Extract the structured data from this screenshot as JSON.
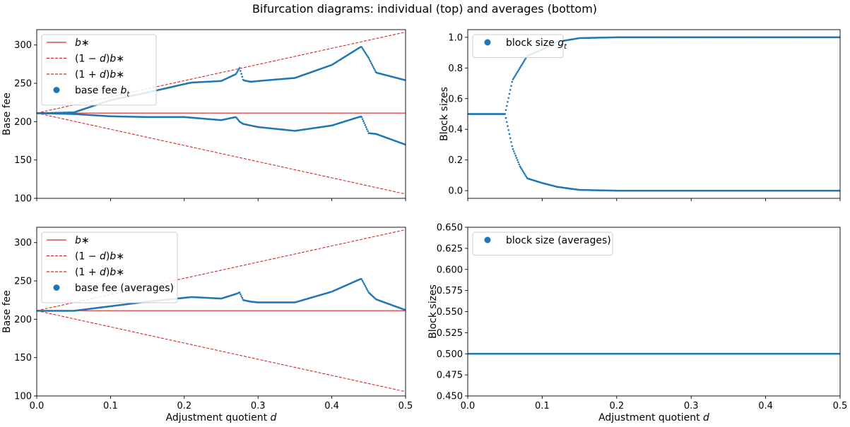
{
  "figure_title": "Bifurcation diagrams: individual (top) and averages (bottom)",
  "colors": {
    "scatter": "#1f77b4",
    "ref_line": "#d62728",
    "axis": "#000000",
    "legend_border": "#cccccc"
  },
  "chart_data": [
    {
      "id": "top-left",
      "type": "scatter",
      "xlabel": "",
      "ylabel": "Base fee",
      "xlim": [
        0,
        0.5
      ],
      "ylim": [
        100,
        320
      ],
      "xticks": [
        0.0,
        0.1,
        0.2,
        0.3,
        0.4,
        0.5
      ],
      "show_xtick_labels": false,
      "yticks": [
        100,
        150,
        200,
        250,
        300
      ],
      "legend": [
        "b*",
        "(1-d)b*",
        "(1+d)b*",
        "base fee b_t"
      ],
      "legend_placement": "top-left",
      "ref_lines": {
        "b_star": 211.2
      },
      "series": [
        {
          "name": "base fee b_t (upper branch)",
          "x": [
            0,
            0.05,
            0.1,
            0.15,
            0.2,
            0.21,
            0.25,
            0.27,
            0.275,
            0.28,
            0.29,
            0.3,
            0.35,
            0.4,
            0.44,
            0.45,
            0.46,
            0.5
          ],
          "y": [
            211,
            212,
            228,
            238,
            249,
            251,
            253,
            262,
            270,
            254,
            252,
            253,
            257,
            274,
            298,
            283,
            264,
            254
          ]
        },
        {
          "name": "base fee b_t (lower branch)",
          "x": [
            0,
            0.05,
            0.1,
            0.15,
            0.2,
            0.25,
            0.27,
            0.275,
            0.28,
            0.29,
            0.3,
            0.35,
            0.4,
            0.44,
            0.45,
            0.46,
            0.5
          ],
          "y": [
            211,
            210,
            207,
            206,
            206,
            202,
            206,
            200,
            197,
            195,
            193,
            188,
            195,
            207,
            185,
            184,
            170
          ]
        }
      ]
    },
    {
      "id": "top-right",
      "type": "scatter",
      "xlabel": "",
      "ylabel": "Block sizes",
      "xlim": [
        0,
        0.5
      ],
      "ylim": [
        -0.05,
        1.05
      ],
      "xticks": [
        0.0,
        0.1,
        0.2,
        0.3,
        0.4,
        0.5
      ],
      "show_xtick_labels": false,
      "yticks": [
        0.0,
        0.2,
        0.4,
        0.6,
        0.8,
        1.0
      ],
      "legend": [
        "block size g_t"
      ],
      "legend_placement": "top-left",
      "series": [
        {
          "name": "block size g_t (upper)",
          "x": [
            0,
            0.05,
            0.06,
            0.08,
            0.1,
            0.12,
            0.15,
            0.2,
            0.5
          ],
          "y": [
            0.5,
            0.5,
            0.72,
            0.88,
            0.92,
            0.97,
            0.995,
            1.0,
            1.0
          ]
        },
        {
          "name": "block size g_t (lower)",
          "x": [
            0,
            0.05,
            0.06,
            0.07,
            0.08,
            0.1,
            0.12,
            0.15,
            0.2,
            0.5
          ],
          "y": [
            0.5,
            0.5,
            0.28,
            0.16,
            0.08,
            0.05,
            0.025,
            0.005,
            0.0,
            0.0
          ]
        }
      ]
    },
    {
      "id": "bottom-left",
      "type": "scatter",
      "xlabel": "Adjustment quotient d",
      "ylabel": "Base fee",
      "xlim": [
        0,
        0.5
      ],
      "ylim": [
        100,
        320
      ],
      "xticks": [
        0.0,
        0.1,
        0.2,
        0.3,
        0.4,
        0.5
      ],
      "show_xtick_labels": true,
      "yticks": [
        100,
        150,
        200,
        250,
        300
      ],
      "legend": [
        "b*",
        "(1-d)b*",
        "(1+d)b*",
        "base fee (averages)"
      ],
      "legend_placement": "top-left",
      "ref_lines": {
        "b_star": 211.2
      },
      "series": [
        {
          "name": "base fee (averages)",
          "x": [
            0,
            0.05,
            0.1,
            0.15,
            0.2,
            0.21,
            0.25,
            0.27,
            0.275,
            0.28,
            0.29,
            0.3,
            0.35,
            0.4,
            0.44,
            0.45,
            0.46,
            0.5
          ],
          "y": [
            211,
            211,
            217,
            223,
            228,
            229,
            227,
            233,
            235,
            225,
            223,
            222,
            222,
            236,
            253,
            235,
            226,
            212
          ]
        }
      ]
    },
    {
      "id": "bottom-right",
      "type": "scatter",
      "xlabel": "Adjustment quotient d",
      "ylabel": "Block sizes",
      "xlim": [
        0,
        0.5
      ],
      "ylim": [
        0.45,
        0.65
      ],
      "xticks": [
        0.0,
        0.1,
        0.2,
        0.3,
        0.4,
        0.5
      ],
      "show_xtick_labels": true,
      "yticks": [
        0.45,
        0.475,
        0.5,
        0.525,
        0.55,
        0.575,
        0.6,
        0.625,
        0.65
      ],
      "legend": [
        "block size (averages)"
      ],
      "legend_placement": "top-left",
      "series": [
        {
          "name": "block size (averages)",
          "x": [
            0,
            0.1,
            0.5
          ],
          "y": [
            0.5,
            0.5,
            0.5
          ]
        }
      ]
    }
  ]
}
